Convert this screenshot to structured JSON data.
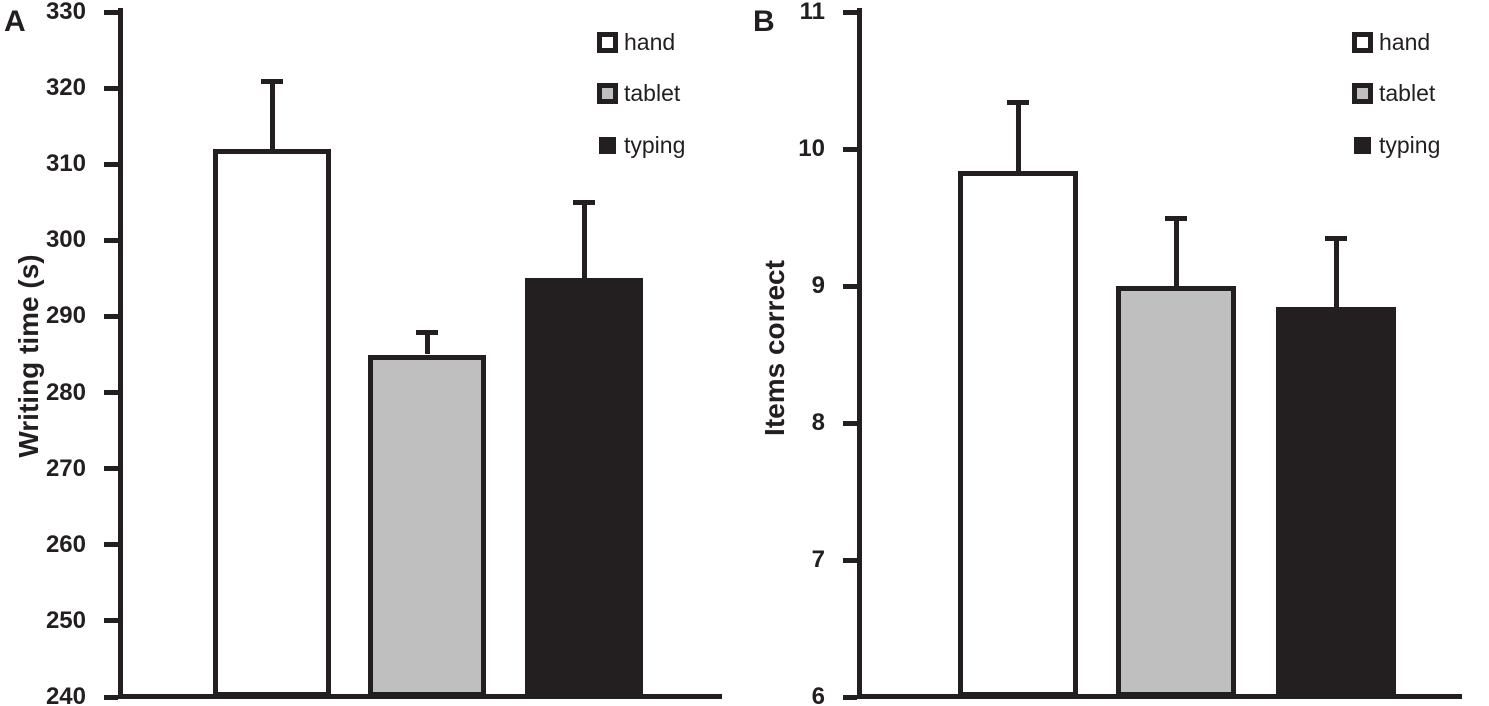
{
  "figure": {
    "background": "#ffffff",
    "ink_color": "#231f20",
    "gray_fill": "#bfbfbf",
    "white_fill": "#ffffff"
  },
  "legend": {
    "items": [
      {
        "label": "hand",
        "fill": "#ffffff",
        "bordered": true
      },
      {
        "label": "tablet",
        "fill": "#bfbfbf",
        "bordered": true
      },
      {
        "label": "typing",
        "fill": "#231f20",
        "bordered": false
      }
    ]
  },
  "chart_data": [
    {
      "type": "bar",
      "panel": "A",
      "title": "",
      "xlabel": "",
      "ylabel": "Writing time (s)",
      "categories": [
        "hand",
        "tablet",
        "typing"
      ],
      "values": [
        312,
        285,
        295
      ],
      "errors_plus": [
        9,
        3,
        10
      ],
      "ylim": [
        240,
        330
      ],
      "yticks": [
        240,
        250,
        260,
        270,
        280,
        290,
        300,
        310,
        320,
        330
      ],
      "bar_fills": [
        "#ffffff",
        "#bfbfbf",
        "#231f20"
      ],
      "grid": false,
      "legend_position": "top-right",
      "error_bars": "upper-only"
    },
    {
      "type": "bar",
      "panel": "B",
      "title": "",
      "xlabel": "",
      "ylabel": "Items correct",
      "categories": [
        "hand",
        "tablet",
        "typing"
      ],
      "values": [
        9.84,
        9.0,
        8.85
      ],
      "errors_plus": [
        0.5,
        0.5,
        0.5
      ],
      "ylim": [
        6,
        11
      ],
      "yticks": [
        6,
        7,
        8,
        9,
        10,
        11
      ],
      "bar_fills": [
        "#ffffff",
        "#bfbfbf",
        "#231f20"
      ],
      "grid": false,
      "legend_position": "top-right",
      "error_bars": "upper-only"
    }
  ]
}
